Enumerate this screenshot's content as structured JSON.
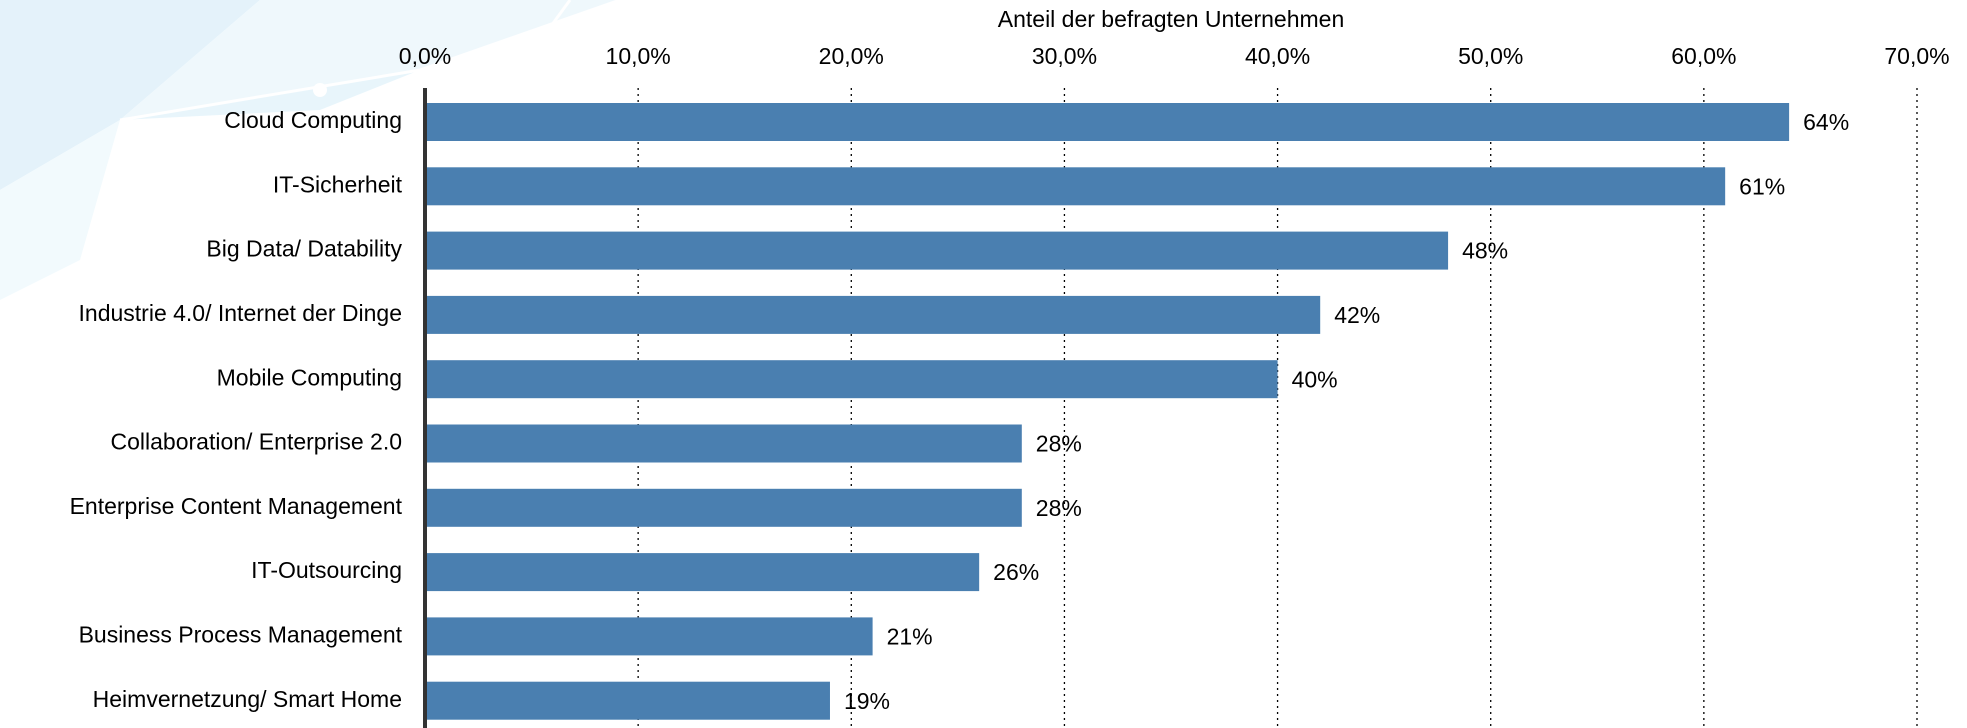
{
  "chart_data": {
    "type": "bar",
    "orientation": "horizontal",
    "x_label": "Anteil der befragten Unternehmen",
    "categories": [
      "Cloud Computing",
      "IT-Sicherheit",
      "Big Data/ Datability",
      "Industrie 4.0/ Internet der Dinge",
      "Mobile Computing",
      "Collaboration/ Enterprise 2.0",
      "Enterprise Content Management",
      "IT-Outsourcing",
      "Business Process Management",
      "Heimvernetzung/ Smart Home"
    ],
    "values": [
      64,
      61,
      48,
      42,
      40,
      28,
      28,
      26,
      21,
      19
    ],
    "value_labels": [
      "64%",
      "61%",
      "48%",
      "42%",
      "40%",
      "28%",
      "28%",
      "26%",
      "21%",
      "19%"
    ],
    "color": "#4a7fb0",
    "xlim": [
      0,
      70
    ],
    "xticks": [
      {
        "value": 0,
        "label": "0,0%"
      },
      {
        "value": 10,
        "label": "10,0%"
      },
      {
        "value": 20,
        "label": "20,0%"
      },
      {
        "value": 30,
        "label": "30,0%"
      },
      {
        "value": 40,
        "label": "40,0%"
      },
      {
        "value": 50,
        "label": "50,0%"
      },
      {
        "value": 60,
        "label": "60,0%"
      },
      {
        "value": 70,
        "label": "70,0%"
      }
    ],
    "grid": true
  }
}
